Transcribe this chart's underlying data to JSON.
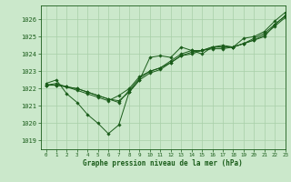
{
  "xlabel": "Graphe pression niveau de la mer (hPa)",
  "ylim": [
    1018.5,
    1026.8
  ],
  "xlim": [
    -0.5,
    23
  ],
  "yticks": [
    1019,
    1020,
    1021,
    1022,
    1023,
    1024,
    1025,
    1026
  ],
  "xticks": [
    0,
    1,
    2,
    3,
    4,
    5,
    6,
    7,
    8,
    9,
    10,
    11,
    12,
    13,
    14,
    15,
    16,
    17,
    18,
    19,
    20,
    21,
    22,
    23
  ],
  "bg_color": "#cbe8cb",
  "grid_color": "#a8cfa8",
  "line_color": "#1a5c1a",
  "series": [
    [
      1022.3,
      1022.5,
      1021.7,
      1021.2,
      1020.5,
      1020.0,
      1019.4,
      1019.9,
      1021.8,
      1022.5,
      1023.8,
      1023.9,
      1023.8,
      1024.4,
      1024.2,
      1024.0,
      1024.4,
      1024.5,
      1024.4,
      1024.9,
      1025.0,
      1025.3,
      1025.9,
      1026.4
    ],
    [
      1022.2,
      1022.2,
      1022.1,
      1022.0,
      1021.8,
      1021.6,
      1021.4,
      1021.2,
      1021.9,
      1022.6,
      1023.0,
      1023.2,
      1023.5,
      1023.9,
      1024.1,
      1024.2,
      1024.3,
      1024.3,
      1024.4,
      1024.6,
      1024.8,
      1025.1,
      1025.6,
      1026.1
    ],
    [
      1022.2,
      1022.2,
      1022.1,
      1022.0,
      1021.8,
      1021.6,
      1021.4,
      1021.3,
      1021.8,
      1022.5,
      1022.9,
      1023.1,
      1023.5,
      1023.9,
      1024.0,
      1024.2,
      1024.4,
      1024.4,
      1024.4,
      1024.6,
      1024.9,
      1025.2,
      1025.7,
      1026.2
    ],
    [
      1022.2,
      1022.3,
      1022.1,
      1021.9,
      1021.7,
      1021.5,
      1021.3,
      1021.6,
      1022.0,
      1022.7,
      1023.0,
      1023.2,
      1023.6,
      1024.0,
      1024.2,
      1024.2,
      1024.4,
      1024.4,
      1024.4,
      1024.6,
      1024.8,
      1025.0,
      1025.7,
      1026.2
    ]
  ]
}
